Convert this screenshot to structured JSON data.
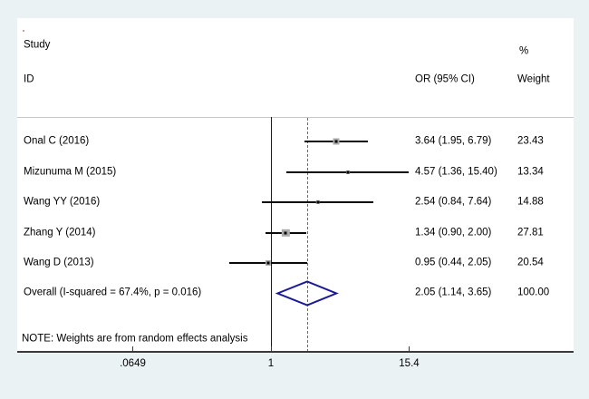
{
  "header": {
    "study": "Study",
    "id": "ID",
    "or_col": "OR (95% CI)",
    "pct": "%",
    "weight_col": "Weight"
  },
  "note": "NOTE: Weights are from random effects analysis",
  "colors": {
    "diamond": "#1a1a96",
    "dashed_line": "#b94a48",
    "ci_line": "#0a0a0a",
    "weight_box": "#ababab",
    "background": "#eaf2f3",
    "panel": "#ffffff"
  },
  "chart_data": {
    "type": "forest",
    "scale": "log",
    "studies": [
      {
        "id": "Onal C (2016)",
        "or": 3.64,
        "ci_low": 1.95,
        "ci_high": 6.79,
        "or_label": "3.64 (1.95, 6.79)",
        "weight": 23.43,
        "weight_label": "23.43"
      },
      {
        "id": "Mizunuma M (2015)",
        "or": 4.57,
        "ci_low": 1.36,
        "ci_high": 15.4,
        "or_label": "4.57 (1.36, 15.40)",
        "weight": 13.34,
        "weight_label": "13.34"
      },
      {
        "id": "Wang YY (2016)",
        "or": 2.54,
        "ci_low": 0.84,
        "ci_high": 7.64,
        "or_label": "2.54 (0.84, 7.64)",
        "weight": 14.88,
        "weight_label": "14.88"
      },
      {
        "id": "Zhang Y (2014)",
        "or": 1.34,
        "ci_low": 0.9,
        "ci_high": 2.0,
        "or_label": "1.34 (0.90, 2.00)",
        "weight": 27.81,
        "weight_label": "27.81"
      },
      {
        "id": "Wang D (2013)",
        "or": 0.95,
        "ci_low": 0.44,
        "ci_high": 2.05,
        "or_label": "0.95 (0.44, 2.05)",
        "weight": 20.54,
        "weight_label": "20.54"
      }
    ],
    "overall": {
      "label": "Overall  (I-squared = 67.4%, p = 0.016)",
      "or": 2.05,
      "ci_low": 1.14,
      "ci_high": 3.65,
      "or_label": "2.05 (1.14, 3.65)",
      "weight_label": "100.00"
    },
    "axis": {
      "ref_value": 1,
      "dashed_value": 2.05,
      "ticks": [
        {
          "value": 0.0649,
          "label": ".0649"
        },
        {
          "value": 1,
          "label": "1"
        },
        {
          "value": 15.4,
          "label": "15.4"
        }
      ]
    }
  }
}
